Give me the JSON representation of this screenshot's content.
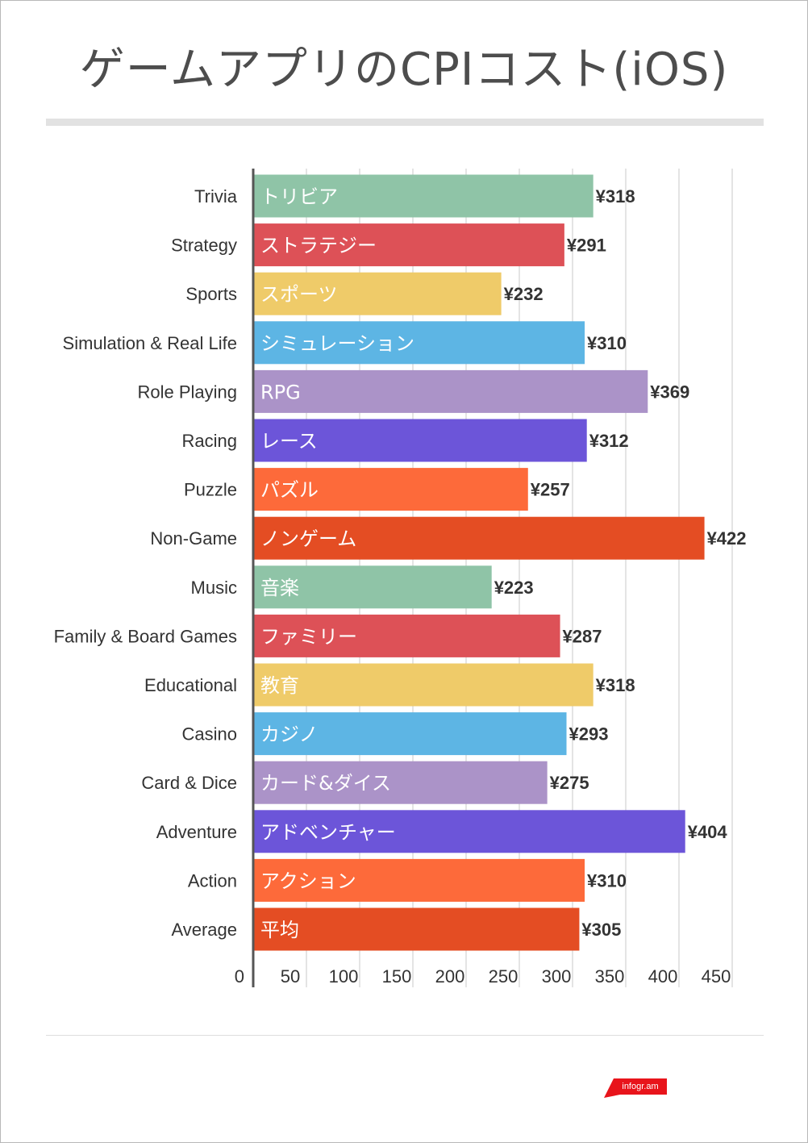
{
  "title": "ゲームアプリのCPIコスト(iOS)",
  "chart_data": {
    "type": "bar",
    "orientation": "horizontal",
    "title": "ゲームアプリのCPIコスト(iOS)",
    "xlabel": "",
    "ylabel": "",
    "xlim": [
      0,
      450
    ],
    "grid": true,
    "legend": "none",
    "x_ticks": [
      "0",
      "50",
      "100",
      "150",
      "200",
      "250",
      "300",
      "350",
      "400",
      "450"
    ],
    "categories": [
      "Trivia",
      "Strategy",
      "Sports",
      "Simulation & Real Life",
      "Role Playing",
      "Racing",
      "Puzzle",
      "Non-Game",
      "Music",
      "Family & Board Games",
      "Educational",
      "Casino",
      "Card & Dice",
      "Adventure",
      "Action",
      "Average"
    ],
    "bar_labels": [
      "トリビア",
      "ストラテジー",
      "スポーツ",
      "シミュレーション",
      "RPG",
      "レース",
      "パズル",
      "ノンゲーム",
      "音楽",
      "ファミリー",
      "教育",
      "カジノ",
      "カード&ダイス",
      "アドベンチャー",
      "アクション",
      "平均"
    ],
    "values": [
      318,
      291,
      232,
      310,
      369,
      312,
      257,
      422,
      223,
      287,
      318,
      293,
      275,
      404,
      310,
      305
    ],
    "value_labels": [
      "¥318",
      "¥291",
      "¥232",
      "¥310",
      "¥369",
      "¥312",
      "¥257",
      "¥422",
      "¥223",
      "¥287",
      "¥318",
      "¥293",
      "¥275",
      "¥404",
      "¥310",
      "¥305"
    ],
    "colors": [
      "#8fc4a7",
      "#dd5157",
      "#efcb69",
      "#5db5e4",
      "#ab93c8",
      "#6c55d9",
      "#fd6a3a",
      "#e44d23",
      "#8fc4a7",
      "#dd5157",
      "#efcb69",
      "#5db5e4",
      "#ab93c8",
      "#6c55d9",
      "#fd6a3a",
      "#e44d23"
    ]
  },
  "footer": {
    "logo_text": "infogr.am",
    "logo_color": "#e8141b"
  }
}
